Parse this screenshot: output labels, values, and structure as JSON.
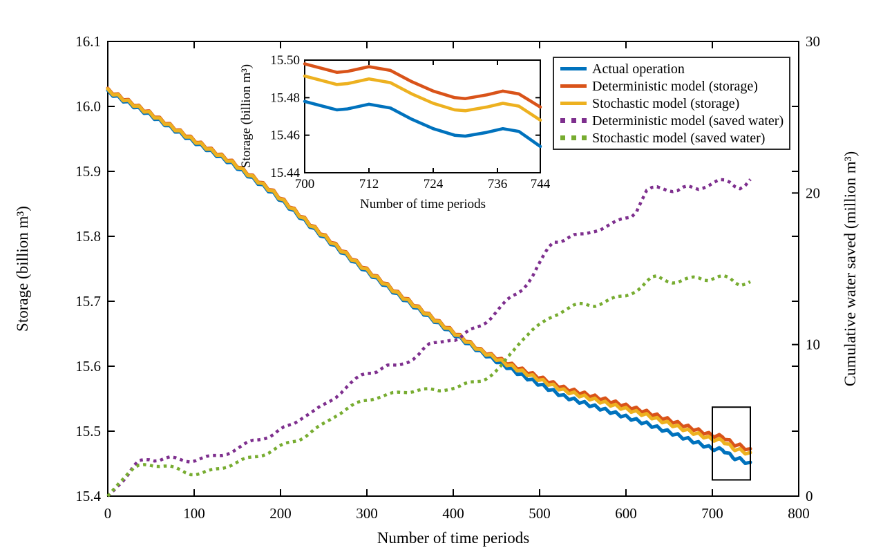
{
  "chart_data": {
    "type": "line",
    "title": "",
    "xlabel": "Number of time periods",
    "ylabel_left": "Storage (billion m³)",
    "ylabel_right": "Cumulative water saved (million m³)",
    "x_range": [
      0,
      800
    ],
    "x_ticks": [
      0,
      100,
      200,
      300,
      400,
      500,
      600,
      700,
      800
    ],
    "y_left_range": [
      15.4,
      16.1
    ],
    "y_left_ticks": [
      15.4,
      15.5,
      15.6,
      15.7,
      15.8,
      15.9,
      16.0,
      16.1
    ],
    "y_right_range": [
      0,
      30
    ],
    "y_right_ticks": [
      0,
      10,
      20,
      30
    ],
    "grid": false,
    "legend_position": "top-right",
    "seasonal_wiggle": {
      "period": 12,
      "amplitude": 0.005
    },
    "series": [
      {
        "name": "Actual operation",
        "color": "#0072BD",
        "style": "solid",
        "axis": "left",
        "points": [
          [
            0,
            16.025
          ],
          [
            48,
            15.99
          ],
          [
            96,
            15.951
          ],
          [
            144,
            15.914
          ],
          [
            192,
            15.868
          ],
          [
            240,
            15.812
          ],
          [
            288,
            15.76
          ],
          [
            336,
            15.712
          ],
          [
            384,
            15.667
          ],
          [
            432,
            15.624
          ],
          [
            480,
            15.588
          ],
          [
            528,
            15.556
          ],
          [
            576,
            15.535
          ],
          [
            624,
            15.514
          ],
          [
            672,
            15.49
          ],
          [
            700,
            15.4755
          ],
          [
            712,
            15.474
          ],
          [
            724,
            15.462
          ],
          [
            732,
            15.459
          ],
          [
            744,
            15.452
          ]
        ]
      },
      {
        "name": "Deterministic model (storage)",
        "color": "#D95319",
        "style": "solid",
        "axis": "left",
        "points": [
          [
            0,
            16.028
          ],
          [
            48,
            15.993
          ],
          [
            96,
            15.954
          ],
          [
            144,
            15.917
          ],
          [
            192,
            15.871
          ],
          [
            240,
            15.815
          ],
          [
            288,
            15.763
          ],
          [
            336,
            15.715
          ],
          [
            384,
            15.67
          ],
          [
            432,
            15.627
          ],
          [
            480,
            15.597
          ],
          [
            528,
            15.569
          ],
          [
            576,
            15.551
          ],
          [
            624,
            15.532
          ],
          [
            672,
            15.509
          ],
          [
            700,
            15.496
          ],
          [
            712,
            15.494
          ],
          [
            724,
            15.483
          ],
          [
            732,
            15.48
          ],
          [
            744,
            15.473
          ]
        ]
      },
      {
        "name": "Stochastic model (storage)",
        "color": "#EDB120",
        "style": "solid",
        "axis": "left",
        "points": [
          [
            0,
            16.027
          ],
          [
            48,
            15.992
          ],
          [
            96,
            15.953
          ],
          [
            144,
            15.916
          ],
          [
            192,
            15.87
          ],
          [
            240,
            15.814
          ],
          [
            288,
            15.762
          ],
          [
            336,
            15.714
          ],
          [
            384,
            15.669
          ],
          [
            432,
            15.626
          ],
          [
            480,
            15.594
          ],
          [
            528,
            15.565
          ],
          [
            576,
            15.546
          ],
          [
            624,
            15.527
          ],
          [
            672,
            15.503
          ],
          [
            700,
            15.49
          ],
          [
            712,
            15.488
          ],
          [
            724,
            15.476
          ],
          [
            732,
            15.473
          ],
          [
            744,
            15.467
          ]
        ]
      },
      {
        "name": "Deterministic model (saved water)",
        "color": "#7E2F8E",
        "style": "dotted",
        "axis": "right",
        "points": [
          [
            0,
            0
          ],
          [
            10,
            0.7
          ],
          [
            22,
            1.25
          ],
          [
            34,
            2.2
          ],
          [
            46,
            2.5
          ],
          [
            58,
            2.4
          ],
          [
            70,
            2.5
          ],
          [
            82,
            2.4
          ],
          [
            94,
            2.35
          ],
          [
            106,
            2.45
          ],
          [
            118,
            2.55
          ],
          [
            130,
            2.7
          ],
          [
            142,
            2.95
          ],
          [
            154,
            3.2
          ],
          [
            166,
            3.6
          ],
          [
            178,
            3.85
          ],
          [
            190,
            4.0
          ],
          [
            202,
            4.4
          ],
          [
            214,
            4.75
          ],
          [
            226,
            5.3
          ],
          [
            238,
            5.55
          ],
          [
            250,
            5.95
          ],
          [
            262,
            6.5
          ],
          [
            274,
            7.1
          ],
          [
            286,
            7.6
          ],
          [
            298,
            8.1
          ],
          [
            310,
            8.25
          ],
          [
            322,
            8.6
          ],
          [
            334,
            8.5
          ],
          [
            346,
            8.85
          ],
          [
            358,
            9.3
          ],
          [
            370,
            9.9
          ],
          [
            382,
            10.1
          ],
          [
            394,
            10.4
          ],
          [
            406,
            10.3
          ],
          [
            418,
            10.85
          ],
          [
            430,
            11.25
          ],
          [
            442,
            11.7
          ],
          [
            454,
            12.35
          ],
          [
            466,
            13.1
          ],
          [
            478,
            13.6
          ],
          [
            490,
            14.3
          ],
          [
            502,
            15.5
          ],
          [
            514,
            16.8
          ],
          [
            526,
            16.9
          ],
          [
            538,
            17.15
          ],
          [
            550,
            17.2
          ],
          [
            562,
            17.55
          ],
          [
            574,
            17.7
          ],
          [
            586,
            17.95
          ],
          [
            598,
            18.35
          ],
          [
            610,
            18.6
          ],
          [
            616,
            19.3
          ],
          [
            624,
            20.1
          ],
          [
            634,
            20.35
          ],
          [
            646,
            20.3
          ],
          [
            658,
            20.15
          ],
          [
            670,
            20.4
          ],
          [
            682,
            20.2
          ],
          [
            694,
            20.55
          ],
          [
            706,
            20.85
          ],
          [
            718,
            20.7
          ],
          [
            730,
            20.3
          ],
          [
            738,
            20.6
          ],
          [
            744,
            20.95
          ]
        ]
      },
      {
        "name": "Stochastic model (saved water)",
        "color": "#77AC30",
        "style": "dotted",
        "axis": "right",
        "points": [
          [
            0,
            0
          ],
          [
            10,
            0.8
          ],
          [
            22,
            1.4
          ],
          [
            34,
            1.9
          ],
          [
            46,
            2.15
          ],
          [
            58,
            2.05
          ],
          [
            70,
            1.9
          ],
          [
            82,
            1.75
          ],
          [
            94,
            1.55
          ],
          [
            106,
            1.45
          ],
          [
            118,
            1.6
          ],
          [
            130,
            1.85
          ],
          [
            142,
            2.1
          ],
          [
            154,
            2.3
          ],
          [
            166,
            2.5
          ],
          [
            178,
            2.75
          ],
          [
            190,
            3.0
          ],
          [
            202,
            3.3
          ],
          [
            214,
            3.6
          ],
          [
            226,
            3.9
          ],
          [
            238,
            4.3
          ],
          [
            250,
            4.7
          ],
          [
            262,
            5.3
          ],
          [
            274,
            5.7
          ],
          [
            286,
            6.0
          ],
          [
            298,
            6.3
          ],
          [
            310,
            6.55
          ],
          [
            322,
            6.65
          ],
          [
            334,
            6.75
          ],
          [
            346,
            6.9
          ],
          [
            358,
            7.05
          ],
          [
            370,
            7.0
          ],
          [
            382,
            6.9
          ],
          [
            394,
            7.15
          ],
          [
            406,
            7.2
          ],
          [
            418,
            7.4
          ],
          [
            430,
            7.6
          ],
          [
            442,
            7.95
          ],
          [
            454,
            8.4
          ],
          [
            466,
            9.3
          ],
          [
            478,
            10.3
          ],
          [
            490,
            10.9
          ],
          [
            502,
            11.3
          ],
          [
            514,
            11.85
          ],
          [
            526,
            12.25
          ],
          [
            538,
            12.5
          ],
          [
            550,
            12.65
          ],
          [
            562,
            12.6
          ],
          [
            574,
            12.8
          ],
          [
            586,
            13.0
          ],
          [
            598,
            13.2
          ],
          [
            610,
            13.55
          ],
          [
            618,
            13.8
          ],
          [
            626,
            14.2
          ],
          [
            634,
            14.5
          ],
          [
            646,
            14.3
          ],
          [
            658,
            14.1
          ],
          [
            670,
            14.25
          ],
          [
            682,
            14.45
          ],
          [
            694,
            14.3
          ],
          [
            706,
            14.45
          ],
          [
            718,
            14.4
          ],
          [
            730,
            13.95
          ],
          [
            738,
            14.1
          ],
          [
            744,
            14.2
          ]
        ]
      }
    ],
    "zoom_box": {
      "t_range": [
        700,
        744
      ],
      "storage_range": [
        15.425,
        15.537
      ]
    },
    "inset": {
      "xlabel": "Number of time periods",
      "ylabel": "Storage (billion m³)",
      "x_range": [
        700,
        744
      ],
      "x_ticks": [
        700,
        712,
        724,
        736,
        744
      ],
      "y_range": [
        15.44,
        15.5
      ],
      "y_ticks": [
        15.44,
        15.46,
        15.48,
        15.5
      ],
      "series": [
        {
          "name": "Actual operation",
          "color": "#0072BD",
          "points": [
            [
              700,
              15.478
            ],
            [
              704,
              15.475
            ],
            [
              706,
              15.4735
            ],
            [
              708,
              15.474
            ],
            [
              712,
              15.4765
            ],
            [
              716,
              15.4745
            ],
            [
              720,
              15.4685
            ],
            [
              724,
              15.4635
            ],
            [
              728,
              15.46
            ],
            [
              730,
              15.4595
            ],
            [
              734,
              15.4615
            ],
            [
              737,
              15.4635
            ],
            [
              740,
              15.462
            ],
            [
              744,
              15.454
            ]
          ]
        },
        {
          "name": "Deterministic model (storage)",
          "color": "#D95319",
          "points": [
            [
              700,
              15.498
            ],
            [
              704,
              15.495
            ],
            [
              706,
              15.4935
            ],
            [
              708,
              15.494
            ],
            [
              712,
              15.4965
            ],
            [
              716,
              15.4945
            ],
            [
              720,
              15.4885
            ],
            [
              724,
              15.4835
            ],
            [
              728,
              15.48
            ],
            [
              730,
              15.4795
            ],
            [
              734,
              15.4815
            ],
            [
              737,
              15.4835
            ],
            [
              740,
              15.482
            ],
            [
              744,
              15.475
            ]
          ]
        },
        {
          "name": "Stochastic model (storage)",
          "color": "#EDB120",
          "points": [
            [
              700,
              15.4915
            ],
            [
              704,
              15.4885
            ],
            [
              706,
              15.487
            ],
            [
              708,
              15.4875
            ],
            [
              712,
              15.49
            ],
            [
              716,
              15.488
            ],
            [
              720,
              15.482
            ],
            [
              724,
              15.477
            ],
            [
              728,
              15.4735
            ],
            [
              730,
              15.473
            ],
            [
              734,
              15.475
            ],
            [
              737,
              15.477
            ],
            [
              740,
              15.4755
            ],
            [
              744,
              15.468
            ]
          ]
        }
      ]
    }
  }
}
